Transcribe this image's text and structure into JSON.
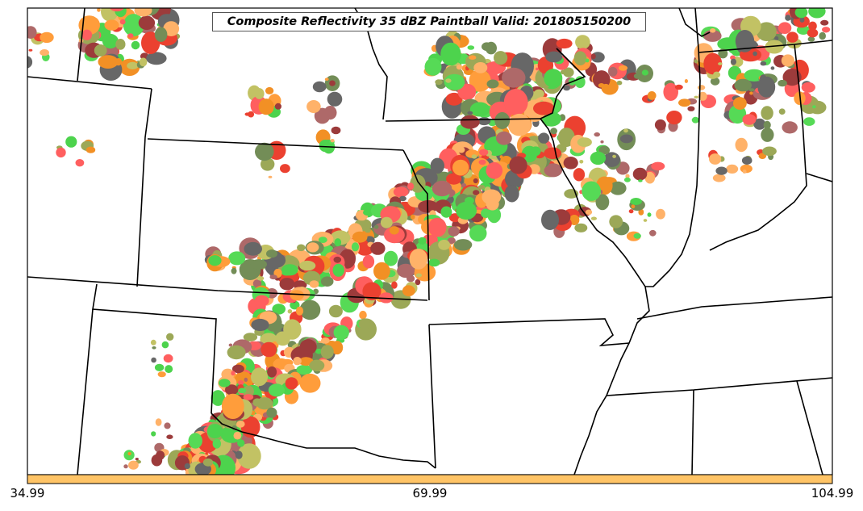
{
  "title": "Composite Reflectivity 35 dBZ Paintball Valid: 201805150200",
  "colorbar": {
    "ticks": [
      "34.99",
      "69.99",
      "104.99"
    ],
    "fill_color": "#ffc466"
  },
  "palette": [
    "#ff4444",
    "#e8200c",
    "#ff8c1a",
    "#f07d00",
    "#ffa54f",
    "#8b1a1a",
    "#a05050",
    "#2ecc2e",
    "#39d439",
    "#8b9a3a",
    "#b8b84a",
    "#4d4d4d",
    "#5b7a3a"
  ]
}
